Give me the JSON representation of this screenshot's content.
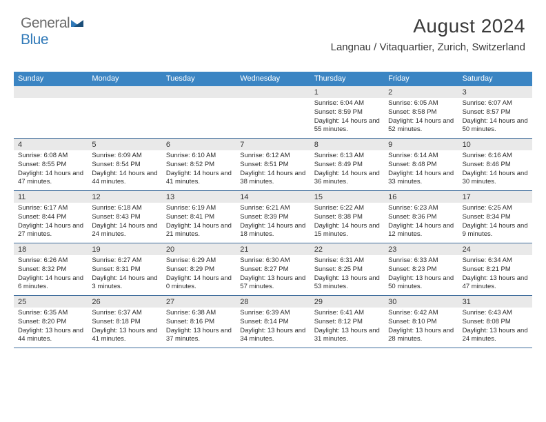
{
  "logo": {
    "general": "General",
    "blue": "Blue"
  },
  "header": {
    "month_title": "August 2024",
    "location": "Langnau / Vitaquartier, Zurich, Switzerland"
  },
  "colors": {
    "header_bg": "#3b85c3",
    "header_fg": "#ffffff",
    "daynum_bg": "#e9e9e9",
    "week_border": "#3b6a9a",
    "logo_gray": "#6a6a6a",
    "logo_blue": "#3079b8",
    "text": "#2a2a2a"
  },
  "day_names": [
    "Sunday",
    "Monday",
    "Tuesday",
    "Wednesday",
    "Thursday",
    "Friday",
    "Saturday"
  ],
  "weeks": [
    [
      {
        "blank": true
      },
      {
        "blank": true
      },
      {
        "blank": true
      },
      {
        "blank": true
      },
      {
        "num": "1",
        "sunrise": "Sunrise: 6:04 AM",
        "sunset": "Sunset: 8:59 PM",
        "daylight": "Daylight: 14 hours and 55 minutes."
      },
      {
        "num": "2",
        "sunrise": "Sunrise: 6:05 AM",
        "sunset": "Sunset: 8:58 PM",
        "daylight": "Daylight: 14 hours and 52 minutes."
      },
      {
        "num": "3",
        "sunrise": "Sunrise: 6:07 AM",
        "sunset": "Sunset: 8:57 PM",
        "daylight": "Daylight: 14 hours and 50 minutes."
      }
    ],
    [
      {
        "num": "4",
        "sunrise": "Sunrise: 6:08 AM",
        "sunset": "Sunset: 8:55 PM",
        "daylight": "Daylight: 14 hours and 47 minutes."
      },
      {
        "num": "5",
        "sunrise": "Sunrise: 6:09 AM",
        "sunset": "Sunset: 8:54 PM",
        "daylight": "Daylight: 14 hours and 44 minutes."
      },
      {
        "num": "6",
        "sunrise": "Sunrise: 6:10 AM",
        "sunset": "Sunset: 8:52 PM",
        "daylight": "Daylight: 14 hours and 41 minutes."
      },
      {
        "num": "7",
        "sunrise": "Sunrise: 6:12 AM",
        "sunset": "Sunset: 8:51 PM",
        "daylight": "Daylight: 14 hours and 38 minutes."
      },
      {
        "num": "8",
        "sunrise": "Sunrise: 6:13 AM",
        "sunset": "Sunset: 8:49 PM",
        "daylight": "Daylight: 14 hours and 36 minutes."
      },
      {
        "num": "9",
        "sunrise": "Sunrise: 6:14 AM",
        "sunset": "Sunset: 8:48 PM",
        "daylight": "Daylight: 14 hours and 33 minutes."
      },
      {
        "num": "10",
        "sunrise": "Sunrise: 6:16 AM",
        "sunset": "Sunset: 8:46 PM",
        "daylight": "Daylight: 14 hours and 30 minutes."
      }
    ],
    [
      {
        "num": "11",
        "sunrise": "Sunrise: 6:17 AM",
        "sunset": "Sunset: 8:44 PM",
        "daylight": "Daylight: 14 hours and 27 minutes."
      },
      {
        "num": "12",
        "sunrise": "Sunrise: 6:18 AM",
        "sunset": "Sunset: 8:43 PM",
        "daylight": "Daylight: 14 hours and 24 minutes."
      },
      {
        "num": "13",
        "sunrise": "Sunrise: 6:19 AM",
        "sunset": "Sunset: 8:41 PM",
        "daylight": "Daylight: 14 hours and 21 minutes."
      },
      {
        "num": "14",
        "sunrise": "Sunrise: 6:21 AM",
        "sunset": "Sunset: 8:39 PM",
        "daylight": "Daylight: 14 hours and 18 minutes."
      },
      {
        "num": "15",
        "sunrise": "Sunrise: 6:22 AM",
        "sunset": "Sunset: 8:38 PM",
        "daylight": "Daylight: 14 hours and 15 minutes."
      },
      {
        "num": "16",
        "sunrise": "Sunrise: 6:23 AM",
        "sunset": "Sunset: 8:36 PM",
        "daylight": "Daylight: 14 hours and 12 minutes."
      },
      {
        "num": "17",
        "sunrise": "Sunrise: 6:25 AM",
        "sunset": "Sunset: 8:34 PM",
        "daylight": "Daylight: 14 hours and 9 minutes."
      }
    ],
    [
      {
        "num": "18",
        "sunrise": "Sunrise: 6:26 AM",
        "sunset": "Sunset: 8:32 PM",
        "daylight": "Daylight: 14 hours and 6 minutes."
      },
      {
        "num": "19",
        "sunrise": "Sunrise: 6:27 AM",
        "sunset": "Sunset: 8:31 PM",
        "daylight": "Daylight: 14 hours and 3 minutes."
      },
      {
        "num": "20",
        "sunrise": "Sunrise: 6:29 AM",
        "sunset": "Sunset: 8:29 PM",
        "daylight": "Daylight: 14 hours and 0 minutes."
      },
      {
        "num": "21",
        "sunrise": "Sunrise: 6:30 AM",
        "sunset": "Sunset: 8:27 PM",
        "daylight": "Daylight: 13 hours and 57 minutes."
      },
      {
        "num": "22",
        "sunrise": "Sunrise: 6:31 AM",
        "sunset": "Sunset: 8:25 PM",
        "daylight": "Daylight: 13 hours and 53 minutes."
      },
      {
        "num": "23",
        "sunrise": "Sunrise: 6:33 AM",
        "sunset": "Sunset: 8:23 PM",
        "daylight": "Daylight: 13 hours and 50 minutes."
      },
      {
        "num": "24",
        "sunrise": "Sunrise: 6:34 AM",
        "sunset": "Sunset: 8:21 PM",
        "daylight": "Daylight: 13 hours and 47 minutes."
      }
    ],
    [
      {
        "num": "25",
        "sunrise": "Sunrise: 6:35 AM",
        "sunset": "Sunset: 8:20 PM",
        "daylight": "Daylight: 13 hours and 44 minutes."
      },
      {
        "num": "26",
        "sunrise": "Sunrise: 6:37 AM",
        "sunset": "Sunset: 8:18 PM",
        "daylight": "Daylight: 13 hours and 41 minutes."
      },
      {
        "num": "27",
        "sunrise": "Sunrise: 6:38 AM",
        "sunset": "Sunset: 8:16 PM",
        "daylight": "Daylight: 13 hours and 37 minutes."
      },
      {
        "num": "28",
        "sunrise": "Sunrise: 6:39 AM",
        "sunset": "Sunset: 8:14 PM",
        "daylight": "Daylight: 13 hours and 34 minutes."
      },
      {
        "num": "29",
        "sunrise": "Sunrise: 6:41 AM",
        "sunset": "Sunset: 8:12 PM",
        "daylight": "Daylight: 13 hours and 31 minutes."
      },
      {
        "num": "30",
        "sunrise": "Sunrise: 6:42 AM",
        "sunset": "Sunset: 8:10 PM",
        "daylight": "Daylight: 13 hours and 28 minutes."
      },
      {
        "num": "31",
        "sunrise": "Sunrise: 6:43 AM",
        "sunset": "Sunset: 8:08 PM",
        "daylight": "Daylight: 13 hours and 24 minutes."
      }
    ]
  ]
}
